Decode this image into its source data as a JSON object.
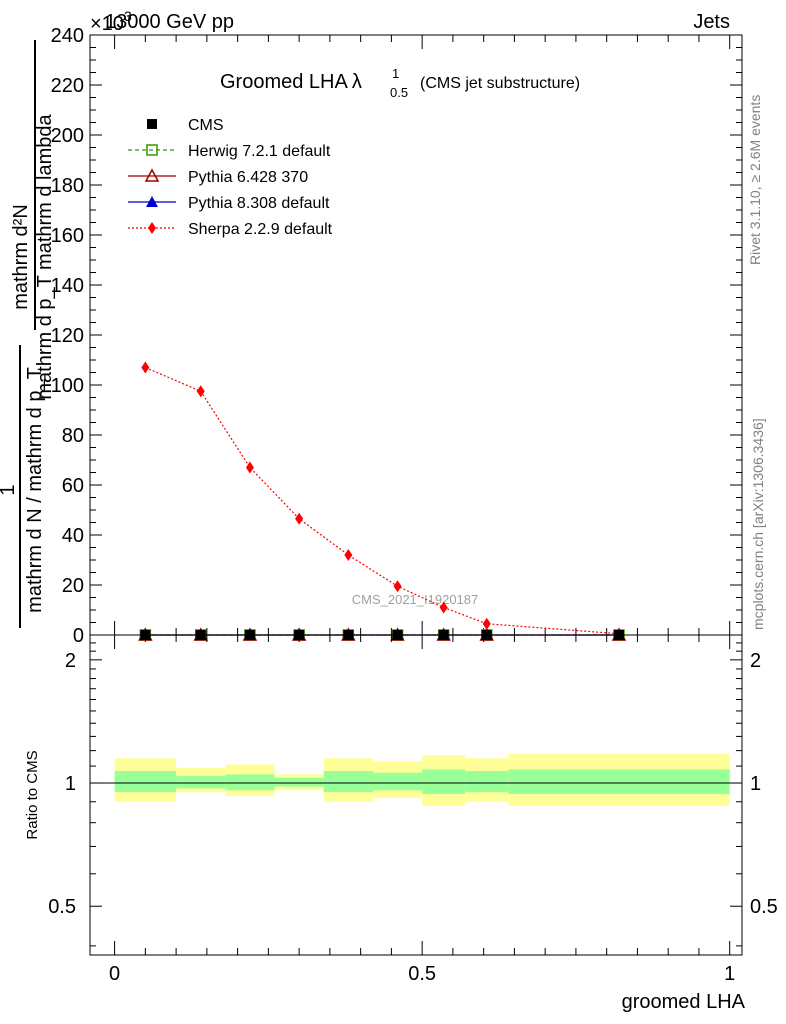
{
  "header": {
    "left": "13000 GeV pp",
    "right": "Jets",
    "multiplier": "×10",
    "multiplier_exp": "3"
  },
  "side_labels": {
    "rivet": "Rivet 3.1.10, ≥ 2.6M events",
    "mcplots": "mcplots.cern.ch [arXiv:1306.3436]"
  },
  "watermark": "CMS_2021_I1920187",
  "colors": {
    "cms": "#000000",
    "herwig": "#339900",
    "pythia6": "#990000",
    "pythia8": "#0000cc",
    "sherpa": "#ff0000",
    "band_inner": "#99ff99",
    "band_outer": "#ffff99"
  },
  "chart_data": [
    {
      "type": "scatter",
      "title_main": "Groomed LHA",
      "title_lambda": "λ",
      "title_sup": "1",
      "title_sub": "0.5",
      "subtitle": "(CMS jet substructure)",
      "ylabel_top": "mathrm d²N",
      "ylabel_top_bottom": "mathrm d p_T mathrm d lambda",
      "ylabel_bottom_top": "1",
      "ylabel_bottom": "mathrm d N / mathrm d p_T",
      "xlim": [
        -0.04,
        1.02
      ],
      "ylim": [
        0,
        240
      ],
      "y_ticks": [
        0,
        20,
        40,
        60,
        80,
        100,
        120,
        140,
        160,
        180,
        200,
        220,
        240
      ],
      "y_tick_labels": [
        "0",
        "20",
        "40",
        "60",
        "80",
        "100",
        "120",
        "140",
        "160",
        "180",
        "200",
        "220",
        "240"
      ],
      "legend_position": "top-left",
      "series": [
        {
          "name": "CMS",
          "x": [
            0.05,
            0.14,
            0.22,
            0.3,
            0.38,
            0.46,
            0.535,
            0.605,
            0.82
          ],
          "y": [
            0,
            0,
            0,
            0,
            0,
            0,
            0,
            0,
            0
          ]
        },
        {
          "name": "Herwig 7.2.1 default",
          "x": [
            0.05,
            0.14,
            0.22,
            0.3,
            0.38,
            0.46,
            0.535,
            0.605,
            0.82
          ],
          "y": [
            0,
            0,
            0,
            0,
            0,
            0,
            0,
            0,
            0
          ]
        },
        {
          "name": "Pythia 6.428 370",
          "x": [
            0.05,
            0.14,
            0.22,
            0.3,
            0.38,
            0.46,
            0.535,
            0.605,
            0.82
          ],
          "y": [
            0,
            0,
            0,
            0,
            0,
            0,
            0,
            0,
            0
          ]
        },
        {
          "name": "Pythia 8.308 default",
          "x": [
            0.05,
            0.14,
            0.22,
            0.3,
            0.38,
            0.46,
            0.535,
            0.605,
            0.82
          ],
          "y": [
            0,
            0,
            0,
            0,
            0,
            0,
            0,
            0,
            0
          ]
        },
        {
          "name": "Sherpa 2.2.9 default",
          "x": [
            0.05,
            0.14,
            0.22,
            0.3,
            0.38,
            0.46,
            0.535,
            0.605,
            0.82
          ],
          "y": [
            107,
            97.5,
            67,
            46.5,
            32,
            19.5,
            11,
            4.5,
            0.5
          ]
        }
      ]
    },
    {
      "type": "line",
      "ylabel": "Ratio to CMS",
      "xlabel": "groomed LHA",
      "xlim": [
        -0.04,
        1.02
      ],
      "ylim": [
        0.38,
        2.3
      ],
      "log_scale_y": true,
      "x_ticks": [
        0,
        0.5,
        1
      ],
      "x_tick_labels": [
        "0",
        "0.5",
        "1"
      ],
      "y_ticks": [
        0.5,
        1,
        2
      ],
      "y_tick_labels": [
        "0.5",
        "1",
        "2"
      ],
      "bins": [
        {
          "lo": 0.0,
          "hi": 0.1,
          "inner": [
            0.95,
            1.07
          ],
          "outer": [
            0.9,
            1.15
          ]
        },
        {
          "lo": 0.1,
          "hi": 0.18,
          "inner": [
            0.97,
            1.04
          ],
          "outer": [
            0.95,
            1.09
          ]
        },
        {
          "lo": 0.18,
          "hi": 0.26,
          "inner": [
            0.96,
            1.05
          ],
          "outer": [
            0.93,
            1.11
          ]
        },
        {
          "lo": 0.26,
          "hi": 0.34,
          "inner": [
            0.98,
            1.03
          ],
          "outer": [
            0.96,
            1.05
          ]
        },
        {
          "lo": 0.34,
          "hi": 0.42,
          "inner": [
            0.95,
            1.07
          ],
          "outer": [
            0.9,
            1.15
          ]
        },
        {
          "lo": 0.42,
          "hi": 0.5,
          "inner": [
            0.96,
            1.06
          ],
          "outer": [
            0.92,
            1.13
          ]
        },
        {
          "lo": 0.5,
          "hi": 0.57,
          "inner": [
            0.94,
            1.08
          ],
          "outer": [
            0.88,
            1.17
          ]
        },
        {
          "lo": 0.57,
          "hi": 0.64,
          "inner": [
            0.95,
            1.07
          ],
          "outer": [
            0.9,
            1.15
          ]
        },
        {
          "lo": 0.64,
          "hi": 1.0,
          "inner": [
            0.94,
            1.08
          ],
          "outer": [
            0.88,
            1.18
          ]
        }
      ]
    }
  ]
}
